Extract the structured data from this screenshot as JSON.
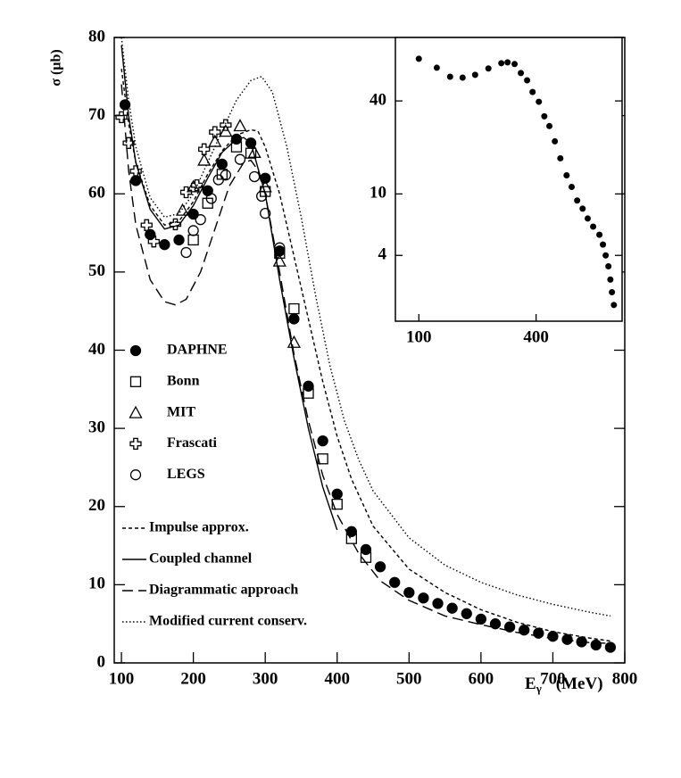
{
  "chart_data": [
    {
      "type": "scatter",
      "y_label": "σ (μb)",
      "x_label": {
        "symbol": "E",
        "subscript": "γ",
        "unit": "(MeV)"
      },
      "color": "#000000",
      "xlim": [
        90,
        800
      ],
      "ylim": [
        0,
        80
      ],
      "xticks": [
        100,
        200,
        300,
        400,
        500,
        600,
        700,
        800
      ],
      "yticks": [
        0,
        10,
        20,
        30,
        40,
        50,
        60,
        70,
        80
      ],
      "series": [
        {
          "name": "DAPHNE",
          "marker": "filled-circle",
          "x": [
            105,
            120,
            140,
            160,
            180,
            200,
            220,
            240,
            260,
            280,
            300,
            320,
            340,
            360,
            380,
            400,
            420,
            440,
            460,
            480,
            500,
            520,
            540,
            560,
            580,
            600,
            620,
            640,
            660,
            680,
            700,
            720,
            740,
            760,
            780
          ],
          "values": [
            71.4,
            61.7,
            54.8,
            53.5,
            54.1,
            57.4,
            60.4,
            63.8,
            67.0,
            66.5,
            62.0,
            52.7,
            44.0,
            35.4,
            28.4,
            21.6,
            16.8,
            14.5,
            12.3,
            10.3,
            9.0,
            8.3,
            7.6,
            7.0,
            6.3,
            5.6,
            5.0,
            4.6,
            4.2,
            3.8,
            3.4,
            3.0,
            2.7,
            2.3,
            2.0
          ]
        },
        {
          "name": "Bonn",
          "marker": "square",
          "x": [
            200,
            220,
            240,
            260,
            280,
            300,
            320,
            340,
            360,
            380,
            400,
            420,
            440
          ],
          "values": [
            54.1,
            58.8,
            62.5,
            66.0,
            65.2,
            60.3,
            52.4,
            45.3,
            34.5,
            26.1,
            20.3,
            15.9,
            13.5
          ]
        },
        {
          "name": "MIT",
          "marker": "triangle",
          "x": [
            185,
            200,
            215,
            230,
            245,
            265,
            285,
            300,
            320,
            340
          ],
          "values": [
            57.9,
            60.9,
            64.3,
            66.7,
            68.0,
            68.7,
            65.3,
            60.9,
            51.4,
            41.0
          ]
        },
        {
          "name": "Frascati",
          "marker": "cross",
          "x": [
            100,
            110,
            120,
            135,
            145,
            175,
            190,
            205,
            215,
            230,
            245
          ],
          "values": [
            69.8,
            66.5,
            62.9,
            56.0,
            53.9,
            56.1,
            60.2,
            61.1,
            65.7,
            67.9,
            68.8
          ]
        },
        {
          "name": "LEGS",
          "marker": "circle",
          "x": [
            190,
            200,
            210,
            225,
            235,
            245,
            265,
            285,
            295,
            300,
            320
          ],
          "values": [
            52.5,
            55.3,
            56.7,
            59.4,
            61.8,
            62.4,
            64.4,
            62.2,
            59.7,
            57.5,
            53.1
          ]
        }
      ],
      "lines": [
        {
          "name": "Impulse approx.",
          "style": "dashed",
          "x": [
            100,
            110,
            120,
            140,
            160,
            180,
            200,
            220,
            240,
            260,
            280,
            290,
            300,
            320,
            340,
            360,
            380,
            400,
            420,
            450,
            500,
            550,
            600,
            650,
            700,
            750,
            780
          ],
          "values": [
            76,
            69,
            64,
            58.5,
            56,
            56.5,
            59,
            62.5,
            65.5,
            67.5,
            68.2,
            68,
            66,
            60,
            52,
            44,
            36,
            29,
            23.5,
            17.5,
            12,
            9,
            6.8,
            5.2,
            4,
            3.2,
            2.8
          ]
        },
        {
          "name": "Coupled channel",
          "style": "solid",
          "x": [
            100,
            110,
            120,
            140,
            160,
            180,
            200,
            220,
            240,
            260,
            270,
            280,
            300,
            320,
            340,
            360,
            380,
            400
          ],
          "values": [
            79,
            70,
            64,
            58,
            55.5,
            56,
            58.5,
            62,
            65.3,
            67,
            67.2,
            66.5,
            60,
            49,
            39,
            30,
            22.5,
            17
          ]
        },
        {
          "name": "Diagrammatic approach",
          "style": "long-dash",
          "x": [
            100,
            110,
            120,
            140,
            160,
            175,
            190,
            210,
            230,
            250,
            270,
            280,
            290,
            300,
            320,
            340,
            360,
            380,
            400,
            430,
            460,
            500,
            550,
            600,
            650,
            700,
            750,
            780
          ],
          "values": [
            74,
            63,
            56,
            49,
            46.2,
            45.8,
            46.5,
            50,
            55.5,
            61,
            64,
            64.3,
            63,
            60,
            50,
            39.5,
            31,
            24,
            19,
            14,
            10.5,
            8,
            6,
            4.9,
            3.9,
            3.1,
            2.6,
            2.5
          ]
        },
        {
          "name": "Modified current conserv.",
          "style": "dotted",
          "x": [
            100,
            110,
            120,
            140,
            160,
            180,
            200,
            220,
            240,
            260,
            280,
            295,
            310,
            330,
            350,
            370,
            390,
            410,
            430,
            450,
            500,
            550,
            600,
            650,
            700,
            750,
            780
          ],
          "values": [
            80,
            72,
            66,
            59.5,
            57,
            57.5,
            60,
            64,
            68,
            72,
            74.5,
            75,
            73,
            66,
            57,
            47,
            38,
            31,
            26,
            22,
            16,
            12.5,
            10.3,
            8.7,
            7.5,
            6.5,
            6
          ]
        }
      ]
    },
    {
      "type": "scatter",
      "log_y": true,
      "color": "#000000",
      "xlim": [
        40,
        620
      ],
      "ylim": [
        1.5,
        103
      ],
      "xticks": [
        100,
        400
      ],
      "yticks": [
        4,
        10,
        40
      ],
      "x": [
        100,
        146,
        180,
        212,
        244,
        278,
        311,
        327,
        345,
        361,
        377,
        391,
        407,
        421,
        434,
        448,
        462,
        478,
        491,
        505,
        519,
        532,
        546,
        562,
        571,
        578,
        585,
        590,
        594,
        599
      ],
      "values": [
        75,
        65.6,
        57.4,
        56.6,
        59,
        64.9,
        70.2,
        71.1,
        69.3,
        60.6,
        54.4,
        45.7,
        39.5,
        31.8,
        27.5,
        21.9,
        17.0,
        13.2,
        11.1,
        9.06,
        8.03,
        6.93,
        6.14,
        5.44,
        4.7,
        4.0,
        3.4,
        2.79,
        2.31,
        1.91
      ]
    }
  ]
}
